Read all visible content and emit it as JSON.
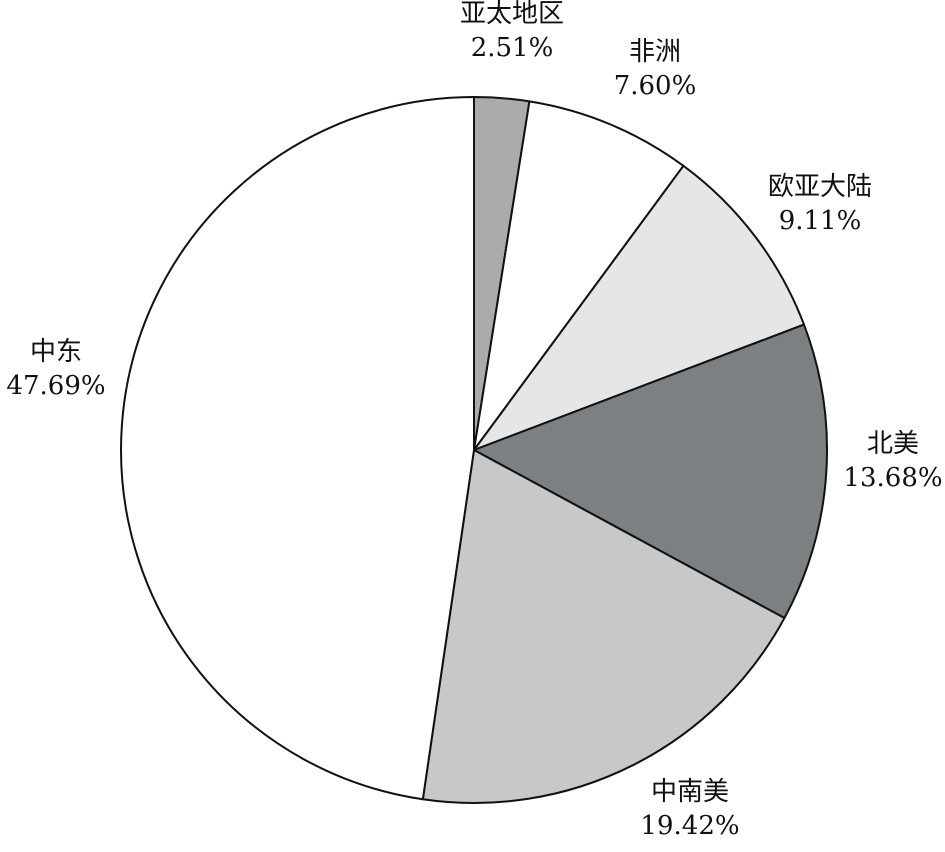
{
  "chart_data": {
    "type": "pie",
    "start_angle_deg": 90,
    "direction": "clockwise",
    "legend": "none",
    "slices": [
      {
        "label": "亚太地区",
        "value": 2.51,
        "value_label": "2.51%",
        "color": "#a9abad"
      },
      {
        "label": "非洲",
        "value": 7.6,
        "value_label": "7.60%",
        "color": "#ffffff"
      },
      {
        "label": "欧亚大陆",
        "value": 9.11,
        "value_label": "9.11%",
        "color": "#e6e6e7"
      },
      {
        "label": "北美",
        "value": 13.68,
        "value_label": "13.68%",
        "color": "#7d8083"
      },
      {
        "label": "中南美",
        "value": 19.42,
        "value_label": "19.42%",
        "color": "#c7c8ca"
      },
      {
        "label": "中东",
        "value": 47.69,
        "value_label": "47.69%",
        "color": "#ffffff"
      }
    ]
  }
}
